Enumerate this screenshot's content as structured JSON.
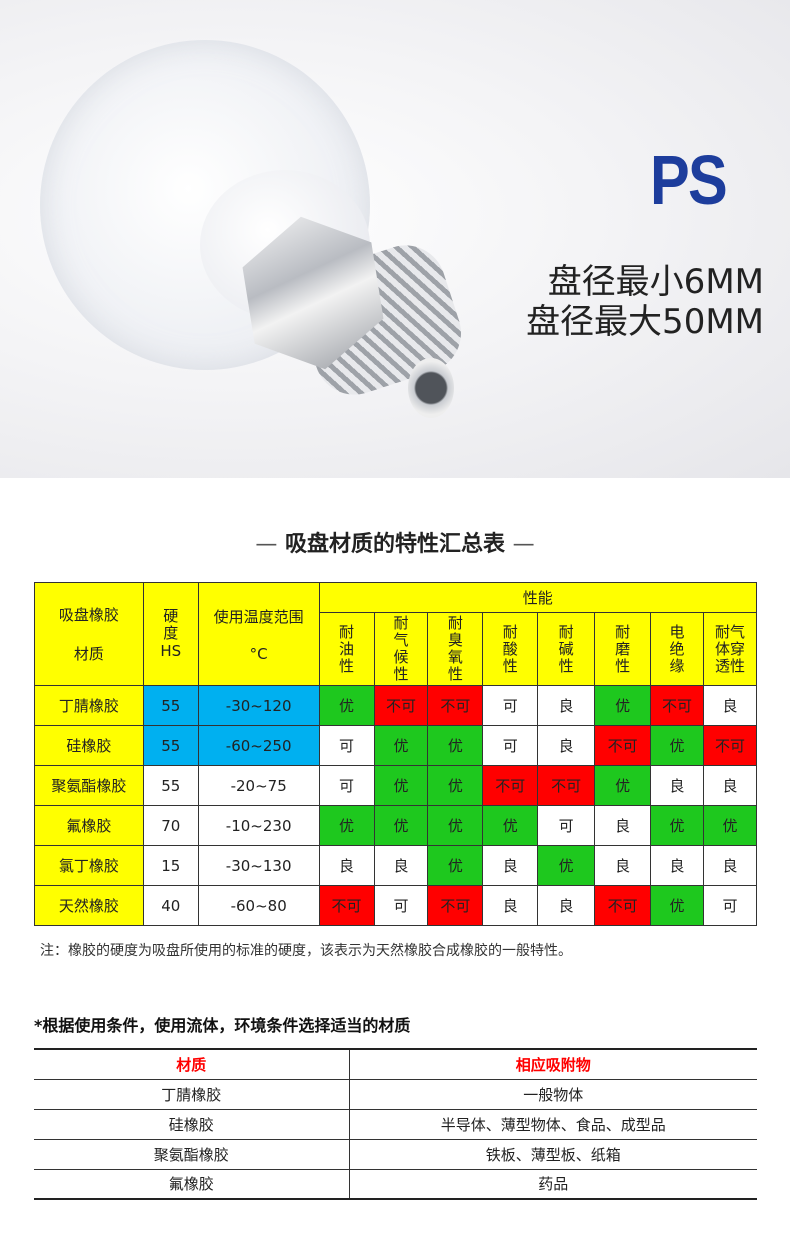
{
  "hero": {
    "brand": "PS",
    "spec_min": "盘径最小6MM",
    "spec_max": "盘径最大50MM"
  },
  "section_title": {
    "dash_left": "—",
    "text": "吸盘材质的特性汇总表",
    "dash_right": "—"
  },
  "colors": {
    "yellow": "#ffff00",
    "blue": "#00b0f0",
    "green": "#1ec81e",
    "red": "#ff0000",
    "brand_blue": "#1d3d9c"
  },
  "table1": {
    "header": {
      "material": "吸盘橡胶材质",
      "material_l1": "吸盘橡胶",
      "material_l2": "材质",
      "hardness_l1": "硬度",
      "hardness_l2": "HS",
      "temp_l1": "使用温度范围",
      "temp_l2": "°C",
      "performance": "性能",
      "props": [
        "耐油性",
        "耐气候性",
        "耐臭氧性",
        "耐酸性",
        "耐碱性",
        "耐磨性",
        "电绝缘",
        "耐气体穿透性"
      ]
    },
    "rows": [
      {
        "name": "丁腈橡胶",
        "hs": "55",
        "temp": "-30~120",
        "vals": [
          "优",
          "不可",
          "不可",
          "可",
          "良",
          "优",
          "不可",
          "良"
        ],
        "hs_color": "blue"
      },
      {
        "name": "硅橡胶",
        "hs": "55",
        "temp": "-60~250",
        "vals": [
          "可",
          "优",
          "优",
          "可",
          "良",
          "不可",
          "优",
          "不可"
        ],
        "hs_color": "blue"
      },
      {
        "name": "聚氨酯橡胶",
        "hs": "55",
        "temp": "-20~75",
        "vals": [
          "可",
          "优",
          "优",
          "不可",
          "不可",
          "优",
          "良",
          "良"
        ],
        "hs_color": "white"
      },
      {
        "name": "氟橡胶",
        "hs": "70",
        "temp": "-10~230",
        "vals": [
          "优",
          "优",
          "优",
          "优",
          "可",
          "良",
          "优",
          "优"
        ],
        "hs_color": "white"
      },
      {
        "name": "氯丁橡胶",
        "hs": "15",
        "temp": "-30~130",
        "vals": [
          "良",
          "良",
          "优",
          "良",
          "优",
          "良",
          "良",
          "良"
        ],
        "hs_color": "white"
      },
      {
        "name": "天然橡胶",
        "hs": "40",
        "temp": "-60~80",
        "vals": [
          "不可",
          "可",
          "不可",
          "良",
          "良",
          "不可",
          "优",
          "可"
        ],
        "hs_color": "white"
      }
    ]
  },
  "note": "注：橡胶的硬度为吸盘所使用的标准的硬度，该表示为天然橡胶合成橡胶的一般特性。",
  "selection": {
    "heading": "*根据使用条件，使用流体，环境条件选择适当的材质",
    "col_material": "材质",
    "col_objects": "相应吸附物",
    "rows": [
      {
        "material": "丁腈橡胶",
        "objects": "一般物体"
      },
      {
        "material": "硅橡胶",
        "objects": "半导体、薄型物体、食品、成型品"
      },
      {
        "material": "聚氨酯橡胶",
        "objects": "铁板、薄型板、纸箱"
      },
      {
        "material": "氟橡胶",
        "objects": "药品"
      }
    ]
  }
}
